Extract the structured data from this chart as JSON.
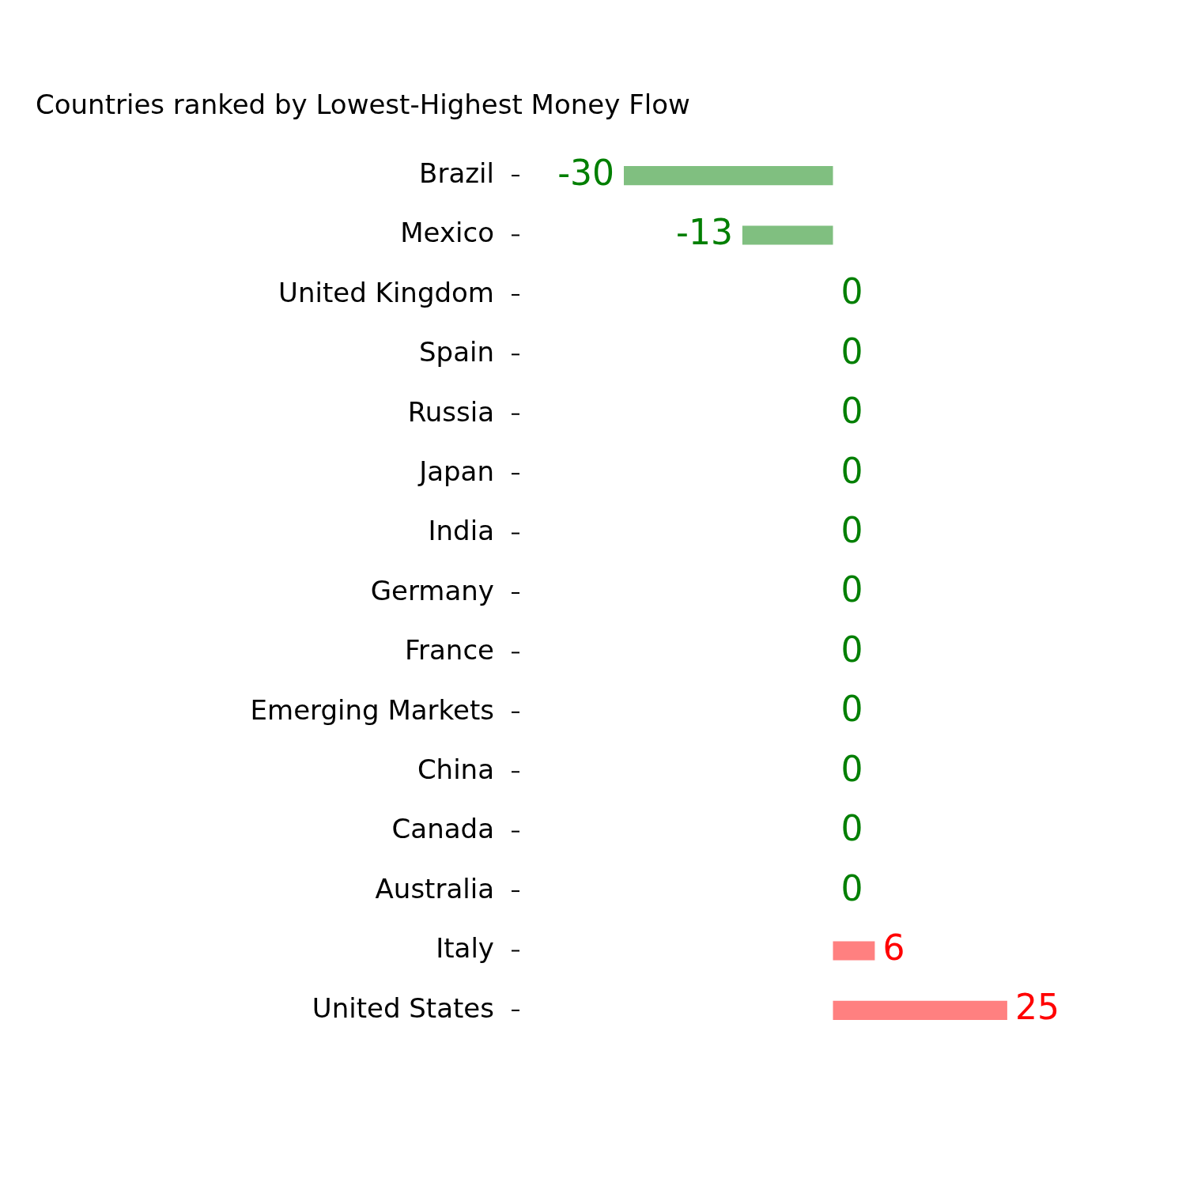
{
  "chart_data": {
    "type": "bar",
    "orientation": "horizontal",
    "title": "Countries ranked by Lowest-Highest Money Flow",
    "categories": [
      "Brazil",
      "Mexico",
      "United Kingdom",
      "Spain",
      "Russia",
      "Japan",
      "India",
      "Germany",
      "France",
      "Emerging Markets",
      "China",
      "Canada",
      "Australia",
      "Italy",
      "United States"
    ],
    "values": [
      -30,
      -13,
      0,
      0,
      0,
      0,
      0,
      0,
      0,
      0,
      0,
      0,
      0,
      6,
      25
    ],
    "colors": [
      "#80bf80",
      "#80bf80",
      "#80bf80",
      "#80bf80",
      "#80bf80",
      "#80bf80",
      "#80bf80",
      "#80bf80",
      "#80bf80",
      "#80bf80",
      "#80bf80",
      "#80bf80",
      "#80bf80",
      "#ff8080",
      "#ff8080"
    ],
    "data_labels": true,
    "tick_labels": "y",
    "grid": false,
    "legend": false
  }
}
